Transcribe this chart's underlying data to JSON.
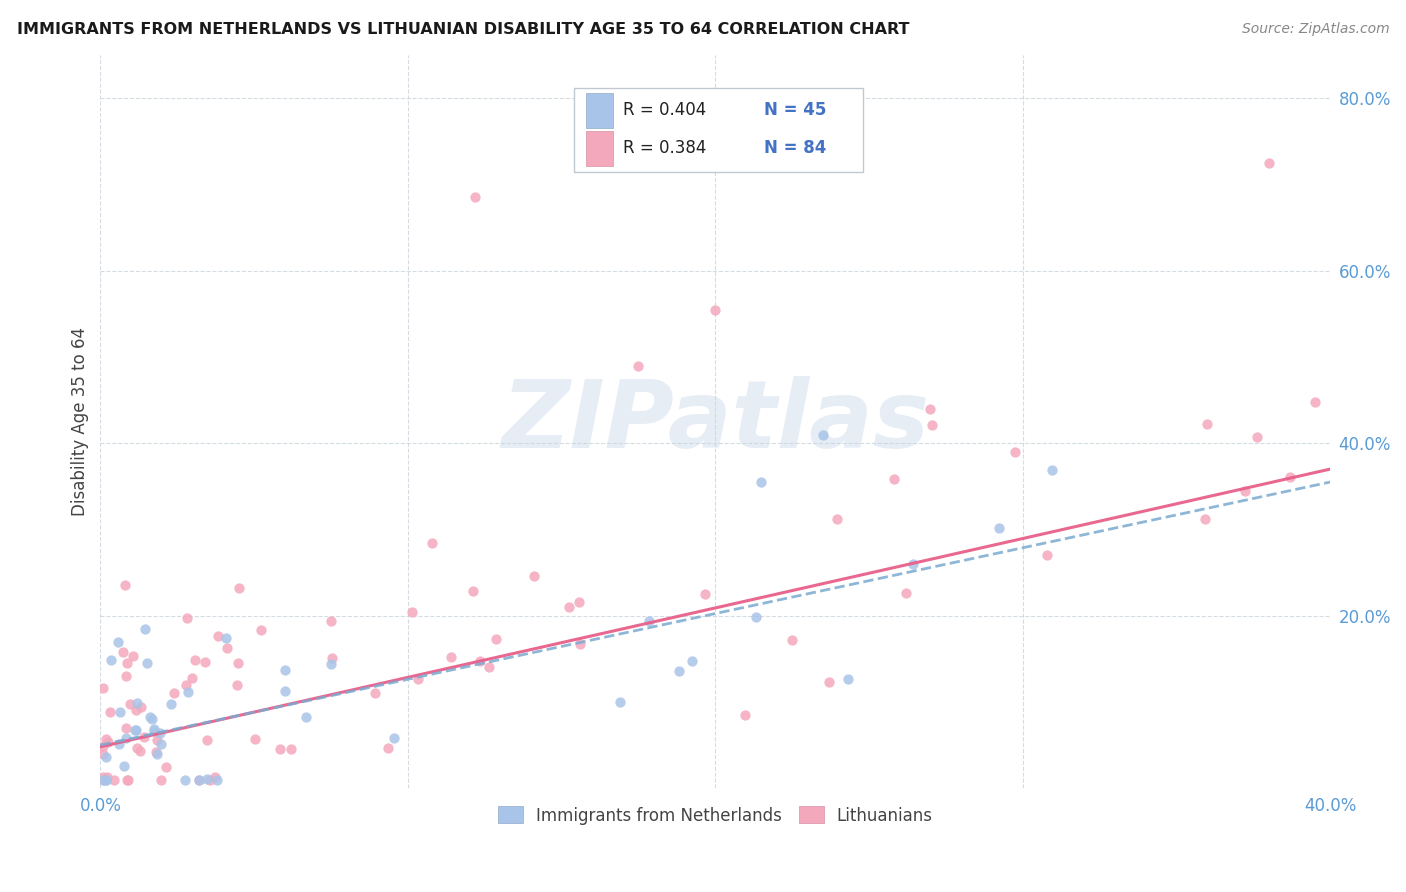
{
  "title": "IMMIGRANTS FROM NETHERLANDS VS LITHUANIAN DISABILITY AGE 35 TO 64 CORRELATION CHART",
  "source": "Source: ZipAtlas.com",
  "ylabel": "Disability Age 35 to 64",
  "xlim": [
    0.0,
    0.4
  ],
  "ylim": [
    0.0,
    0.85
  ],
  "color_netherlands": "#a8c4e8",
  "color_lithuanian": "#f4a8bc",
  "color_text_blue": "#4472c4",
  "trendline_netherlands_color": "#7aaad0",
  "trendline_lithuanian_color": "#e8608a",
  "background_color": "#ffffff",
  "grid_color": "#d0d8e0",
  "watermark": "ZIPatlas",
  "legend_items": [
    {
      "r": "R = 0.404",
      "n": "N = 45",
      "color": "#a8c4e8"
    },
    {
      "r": "R = 0.384",
      "n": "N = 84",
      "color": "#f4a8bc"
    }
  ]
}
